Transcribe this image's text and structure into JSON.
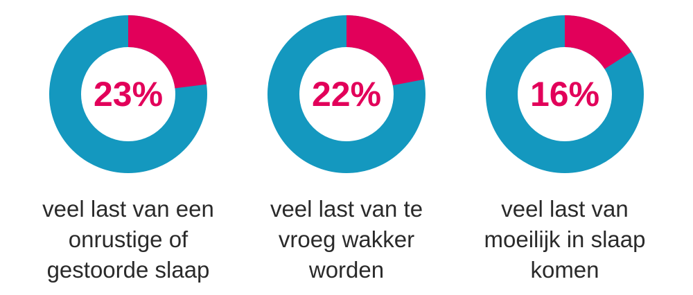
{
  "colors": {
    "highlight": "#e2005a",
    "remainder": "#1498bf",
    "text": "#2a2a2a"
  },
  "chart_data": [
    {
      "type": "pie",
      "variant": "donut",
      "value": 23,
      "label_text": "23%",
      "caption_lines": [
        "veel last van een",
        "onrustige of",
        "gestoorde slaap"
      ]
    },
    {
      "type": "pie",
      "variant": "donut",
      "value": 22,
      "label_text": "22%",
      "caption_lines": [
        "veel last van te",
        "vroeg wakker",
        "worden"
      ]
    },
    {
      "type": "pie",
      "variant": "donut",
      "value": 16,
      "label_text": "16%",
      "caption_lines": [
        "veel last van",
        "moeilijk in slaap",
        "komen"
      ]
    }
  ]
}
